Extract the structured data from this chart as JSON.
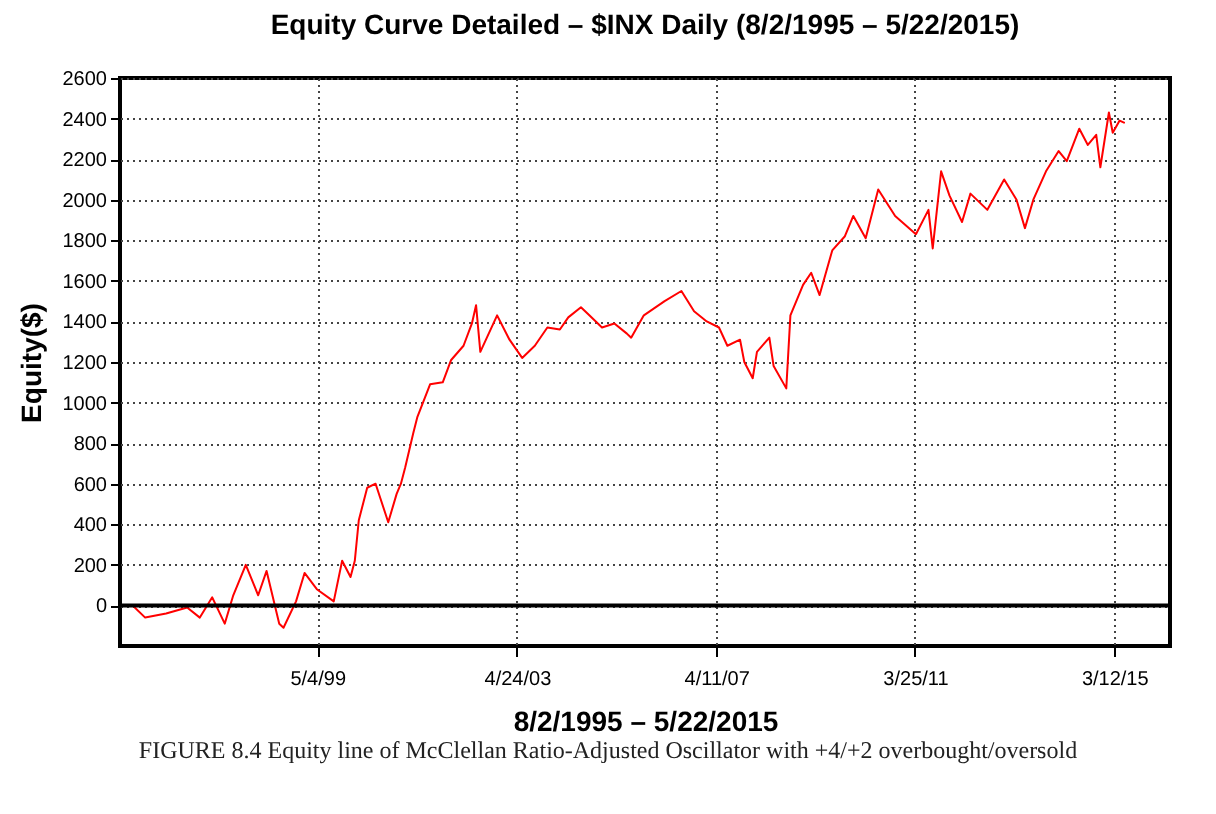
{
  "chart_data": {
    "type": "line",
    "title": "Equity Curve Detailed – $INX Daily (8/2/1995 – 5/22/2015)",
    "xlabel": "8/2/1995 – 5/22/2015",
    "ylabel": "Equity($)",
    "x": [
      "1995-08-02",
      "1995-09",
      "1995-12",
      "1996-05",
      "1996-10",
      "1997-01",
      "1997-04",
      "1997-07",
      "1997-09",
      "1997-12",
      "1998-03",
      "1998-05",
      "1998-08",
      "1998-09",
      "1998-12",
      "1999-02",
      "1999-05",
      "1999-09",
      "1999-11",
      "2000-01",
      "2000-02",
      "2000-03",
      "2000-05",
      "2000-07",
      "2000-10",
      "2000-12",
      "2001-01",
      "2001-02",
      "2001-04",
      "2001-05",
      "2001-08",
      "2001-11",
      "2002-01",
      "2002-04",
      "2002-06",
      "2002-07",
      "2002-08",
      "2002-12",
      "2003-03",
      "2003-06",
      "2003-09",
      "2003-12",
      "2004-03",
      "2004-05",
      "2004-08",
      "2004-10",
      "2005-01",
      "2005-04",
      "2005-07",
      "2005-08",
      "2005-11",
      "2006-04",
      "2006-08",
      "2006-11",
      "2007-02",
      "2007-05",
      "2007-07",
      "2007-10",
      "2007-11",
      "2008-01",
      "2008-02",
      "2008-05",
      "2008-06",
      "2008-09",
      "2008-10",
      "2009-01",
      "2009-03",
      "2009-05",
      "2009-08",
      "2009-11",
      "2010-01",
      "2010-04",
      "2010-07",
      "2010-11",
      "2011-04",
      "2011-07",
      "2011-08",
      "2011-10",
      "2011-12",
      "2012-03",
      "2012-05",
      "2012-09",
      "2013-01",
      "2013-04",
      "2013-06",
      "2013-08",
      "2013-11",
      "2014-02",
      "2014-04",
      "2014-07",
      "2014-09",
      "2014-11",
      "2014-12",
      "2015-02",
      "2015-03",
      "2015-04-20",
      "2015-05-22"
    ],
    "series": [
      {
        "color": "#ff0000",
        "values": [
          0,
          0,
          -60,
          -40,
          -10,
          -60,
          40,
          -90,
          50,
          200,
          50,
          170,
          -90,
          -110,
          20,
          160,
          80,
          20,
          220,
          140,
          220,
          420,
          580,
          600,
          410,
          550,
          600,
          680,
          850,
          930,
          1090,
          1100,
          1210,
          1280,
          1390,
          1480,
          1250,
          1430,
          1310,
          1220,
          1280,
          1370,
          1360,
          1420,
          1470,
          1430,
          1370,
          1390,
          1340,
          1320,
          1430,
          1500,
          1550,
          1450,
          1400,
          1370,
          1280,
          1310,
          1200,
          1120,
          1250,
          1320,
          1180,
          1070,
          1430,
          1580,
          1640,
          1530,
          1750,
          1820,
          1920,
          1810,
          2050,
          1920,
          1830,
          1950,
          1760,
          2140,
          2020,
          1890,
          2030,
          1950,
          2100,
          2000,
          1860,
          2000,
          2140,
          2240,
          2190,
          2350,
          2270,
          2320,
          2160,
          2430,
          2330,
          2390,
          2380
        ]
      }
    ],
    "xlim": [
      "1995-06-01",
      "2016-04-20"
    ],
    "xticks": [
      {
        "value": "1999-05-04",
        "label": "5/4/99"
      },
      {
        "value": "2003-04-24",
        "label": "4/24/03"
      },
      {
        "value": "2007-04-11",
        "label": "4/11/07"
      },
      {
        "value": "2011-03-25",
        "label": "3/25/11"
      },
      {
        "value": "2015-03-12",
        "label": "3/12/15"
      }
    ],
    "ylim": [
      -200,
      2600
    ],
    "yticks": [
      0,
      200,
      400,
      600,
      800,
      1000,
      1200,
      1400,
      1600,
      1800,
      2000,
      2200,
      2400,
      2600
    ],
    "grid": true,
    "line_style": "solid",
    "ref_lines": [
      {
        "axis": "y",
        "value": 0,
        "color": "#000000"
      }
    ],
    "annotations": [
      "FIGURE 8.4 Equity line of McClellan Ratio-Adjusted Oscillator with +4/+2 overbought/oversold"
    ]
  }
}
